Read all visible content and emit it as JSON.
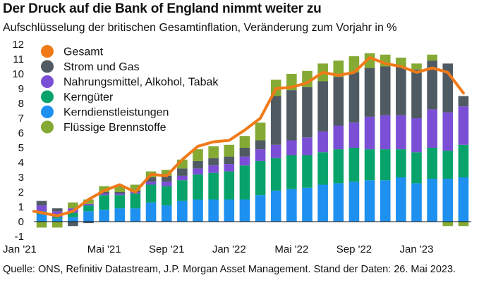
{
  "title": "Der Druck auf die Bank of England nimmt weiter zu",
  "subtitle": "Aufschlüsselung der britischen Gesamtinflation, Veränderung zum Vorjahr in %",
  "source": "Quelle: ONS, Refinitiv Datastream, J.P. Morgan Asset Management. Stand der Daten: 26. Mai 2023.",
  "chart_data": {
    "type": "bar",
    "stacked": true,
    "categories": [
      "Jan '21",
      "Feb '21",
      "Mar '21",
      "Apr '21",
      "May '21",
      "Jun '21",
      "Jul '21",
      "Aug '21",
      "Sep '21",
      "Oct '21",
      "Nov '21",
      "Dec '21",
      "Jan '22",
      "Feb '22",
      "Mar '22",
      "Apr '22",
      "May '22",
      "Jun '22",
      "Jul '22",
      "Aug '22",
      "Sep '22",
      "Oct '22",
      "Nov '22",
      "Dec '22",
      "Jan '23",
      "Feb '23",
      "Mar '23",
      "Apr '23"
    ],
    "x_tick_labels": [
      {
        "index": 0,
        "label": "Jan '21"
      },
      {
        "index": 4,
        "label": "Mai '21"
      },
      {
        "index": 8,
        "label": "Sep '21"
      },
      {
        "index": 12,
        "label": "Jan '22"
      },
      {
        "index": 16,
        "label": "Mai '22"
      },
      {
        "index": 20,
        "label": "Sep '22"
      },
      {
        "index": 24,
        "label": "Jan '23"
      }
    ],
    "ylim": [
      -1,
      12
    ],
    "yticks": [
      -1,
      0,
      1,
      2,
      3,
      4,
      5,
      6,
      7,
      8,
      9,
      10,
      11,
      12
    ],
    "grid": false,
    "legend_position": "top-left",
    "series": [
      {
        "name": "Kerndienstleistungen",
        "color": "#1e90f0",
        "values": [
          0.5,
          0.2,
          0.3,
          0.7,
          0.8,
          0.9,
          0.9,
          1.3,
          1.1,
          1.4,
          1.5,
          1.5,
          1.5,
          1.5,
          1.8,
          2.1,
          2.2,
          2.3,
          2.5,
          2.6,
          2.7,
          2.8,
          2.8,
          3.0,
          2.6,
          2.9,
          2.9,
          3.0
        ]
      },
      {
        "name": "Kerngüter",
        "color": "#08a36a",
        "values": [
          0.2,
          0.1,
          0.3,
          0.4,
          1.0,
          0.9,
          1.0,
          1.2,
          1.3,
          1.4,
          1.7,
          1.8,
          1.9,
          2.3,
          2.3,
          2.2,
          2.3,
          2.2,
          2.2,
          2.3,
          2.3,
          2.1,
          2.1,
          1.9,
          2.1,
          2.1,
          1.9,
          2.2
        ]
      },
      {
        "name": "Nahrungsmittel, Alkohol, Tabak",
        "color": "#7a4fd6",
        "values": [
          0.4,
          0.4,
          0.3,
          0.1,
          0.1,
          0.1,
          0.1,
          0.2,
          0.3,
          0.3,
          0.4,
          0.5,
          0.5,
          0.6,
          0.8,
          0.9,
          1.0,
          1.2,
          1.4,
          1.6,
          1.7,
          2.2,
          2.3,
          2.3,
          2.3,
          2.6,
          2.6,
          2.6
        ]
      },
      {
        "name": "Strom und Gas",
        "color": "#505a63",
        "values": [
          0.3,
          0.2,
          -0.3,
          -0.1,
          0.1,
          0.1,
          0.1,
          0.3,
          0.4,
          0.5,
          0.5,
          0.5,
          0.5,
          0.6,
          0.6,
          3.3,
          3.4,
          3.4,
          3.4,
          3.3,
          3.4,
          3.3,
          3.3,
          3.3,
          3.3,
          3.3,
          3.3,
          0.7
        ]
      },
      {
        "name": "Flüssige Brennstoffe",
        "color": "#84aa34",
        "values": [
          -0.4,
          -0.4,
          0.4,
          0.3,
          0.4,
          0.4,
          0.4,
          0.4,
          0.4,
          0.6,
          0.8,
          0.8,
          0.8,
          0.8,
          1.2,
          1.1,
          1.1,
          1.1,
          1.2,
          1.1,
          1.1,
          1.0,
          0.8,
          0.6,
          0.4,
          0.4,
          -0.3,
          -0.3
        ]
      },
      {
        "name": "Gesamt",
        "color": "#f07a18",
        "type": "line",
        "values": [
          0.7,
          0.4,
          0.7,
          1.5,
          2.1,
          2.5,
          2.0,
          3.2,
          3.1,
          4.2,
          5.1,
          5.4,
          5.5,
          6.2,
          7.0,
          9.0,
          9.1,
          9.4,
          10.1,
          9.9,
          10.1,
          11.1,
          10.7,
          10.5,
          10.1,
          10.4,
          10.1,
          8.7
        ]
      }
    ]
  }
}
